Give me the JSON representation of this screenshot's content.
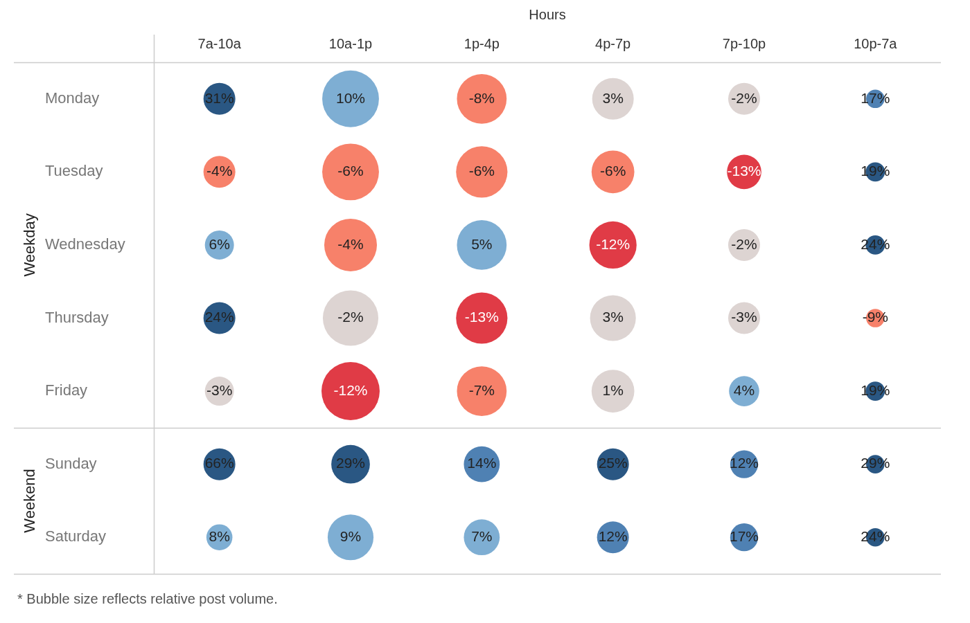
{
  "chart_data": {
    "type": "bubble",
    "x_title": "Hours",
    "categories": [
      "7a-10a",
      "10a-1p",
      "1p-4p",
      "4p-7p",
      "7p-10p",
      "10p-7a"
    ],
    "groups": [
      {
        "name": "Weekday",
        "categories": [
          "Monday",
          "Tuesday",
          "Wednesday",
          "Thursday",
          "Friday"
        ]
      },
      {
        "name": "Weekend",
        "categories": [
          "Sunday",
          "Saturday"
        ]
      }
    ],
    "values": [
      [
        31,
        10,
        -8,
        3,
        -2,
        17
      ],
      [
        -4,
        -6,
        -6,
        -6,
        -13,
        19
      ],
      [
        6,
        -4,
        5,
        -12,
        -2,
        24
      ],
      [
        24,
        -2,
        -13,
        3,
        -3,
        -9
      ],
      [
        -3,
        -12,
        -7,
        1,
        4,
        19
      ],
      [
        66,
        29,
        14,
        25,
        12,
        29
      ],
      [
        8,
        9,
        7,
        12,
        17,
        24
      ]
    ],
    "value_labels": [
      [
        "31%",
        "10%",
        "-8%",
        "3%",
        "-2%",
        "17%"
      ],
      [
        "-4%",
        "-6%",
        "-6%",
        "-6%",
        "-13%",
        "19%"
      ],
      [
        "6%",
        "-4%",
        "5%",
        "-12%",
        "-2%",
        "24%"
      ],
      [
        "24%",
        "-2%",
        "-13%",
        "3%",
        "-3%",
        "-9%"
      ],
      [
        "-3%",
        "-12%",
        "-7%",
        "1%",
        "4%",
        "19%"
      ],
      [
        "66%",
        "29%",
        "14%",
        "25%",
        "12%",
        "29%"
      ],
      [
        "8%",
        "9%",
        "7%",
        "12%",
        "17%",
        "24%"
      ]
    ],
    "sizes": [
      [
        30,
        95,
        73,
        51,
        30,
        10
      ],
      [
        30,
        95,
        78,
        54,
        35,
        11
      ],
      [
        25,
        82,
        73,
        66,
        30,
        11
      ],
      [
        30,
        91,
        78,
        62,
        30,
        10
      ],
      [
        25,
        100,
        73,
        54,
        27,
        11
      ],
      [
        30,
        44,
        38,
        30,
        23,
        10
      ],
      [
        20,
        62,
        38,
        30,
        23,
        10
      ]
    ],
    "colors": [
      [
        "#2a5783",
        "#7eaed3",
        "#f7816a",
        "#ddd4d2",
        "#ddd4d2",
        "#4f81b3"
      ],
      [
        "#f7816a",
        "#f7816a",
        "#f7816a",
        "#f7816a",
        "#e03b46",
        "#2a5783"
      ],
      [
        "#7eaed3",
        "#f7816a",
        "#7eaed3",
        "#e03b46",
        "#ddd4d2",
        "#2a5783"
      ],
      [
        "#2a5783",
        "#ddd4d2",
        "#e03b46",
        "#ddd4d2",
        "#ddd4d2",
        "#f7816a"
      ],
      [
        "#ddd4d2",
        "#e03b46",
        "#f7816a",
        "#ddd4d2",
        "#7eaed3",
        "#2a5783"
      ],
      [
        "#2a5783",
        "#2a5783",
        "#4f81b3",
        "#2a5783",
        "#4f81b3",
        "#2a5783"
      ],
      [
        "#7eaed3",
        "#7eaed3",
        "#7eaed3",
        "#4f81b3",
        "#4f81b3",
        "#2a5783"
      ]
    ],
    "data_labels": true,
    "footnote": "* Bubble size reflects relative post volume."
  }
}
